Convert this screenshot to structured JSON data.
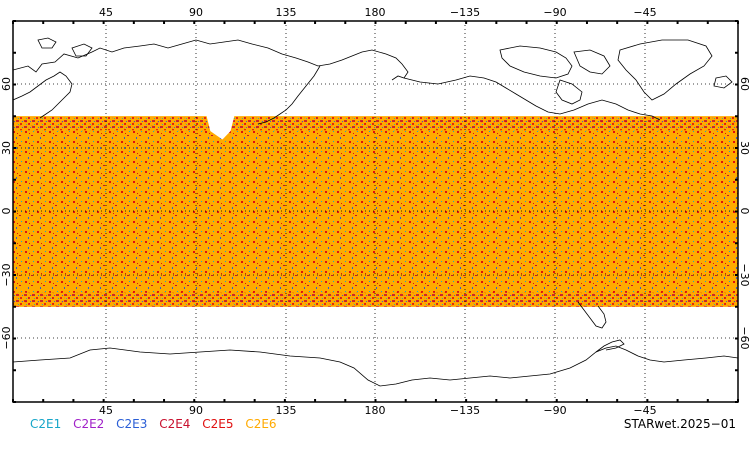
{
  "map": {
    "top_lon_ticks": [
      "45",
      "90",
      "135",
      "180",
      "−135",
      "−90",
      "−45"
    ],
    "bottom_lon_ticks": [
      "45",
      "90",
      "135",
      "180",
      "−135",
      "−90",
      "−45"
    ],
    "lat_ticks": [
      "60",
      "30",
      "0",
      "−30",
      "−60"
    ],
    "coverage_lat_range": [
      -45,
      45
    ],
    "lon_range": [
      0,
      360
    ],
    "lat_range": [
      -90,
      90
    ]
  },
  "legend": {
    "items": [
      {
        "label": "C2E1",
        "color": "#17a6c9"
      },
      {
        "label": "C2E2",
        "color": "#a020c8"
      },
      {
        "label": "C2E3",
        "color": "#2a5ed6"
      },
      {
        "label": "C2E4",
        "color": "#c8102e"
      },
      {
        "label": "C2E5",
        "color": "#e01010"
      },
      {
        "label": "C2E6",
        "color": "#ffaa00"
      }
    ]
  },
  "footer": {
    "title": "STARwet.2025−01"
  }
}
